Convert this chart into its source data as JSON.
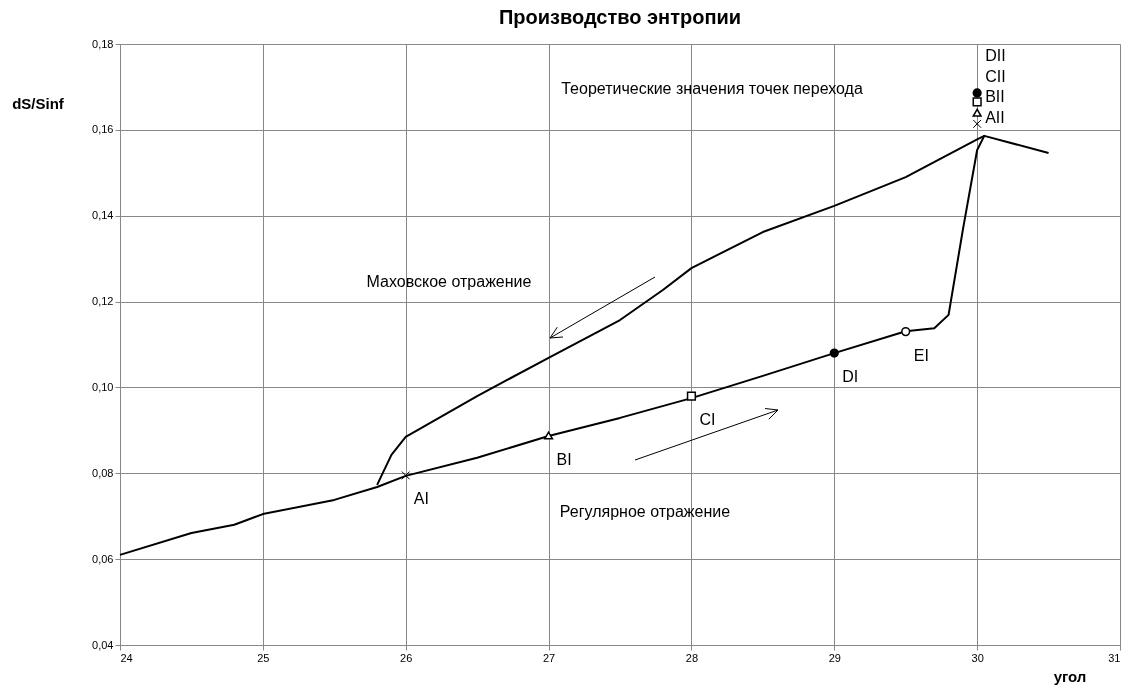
{
  "chart_data": {
    "type": "line",
    "title": "Производство энтропии",
    "xlabel": "угол",
    "ylabel": "dS/Sinf",
    "xlim": [
      24,
      31
    ],
    "xticks": [
      24,
      25,
      26,
      27,
      28,
      29,
      30,
      31
    ],
    "ylim": [
      0.04,
      0.18
    ],
    "yticks": [
      {
        "value": 0.04,
        "label": "0,04"
      },
      {
        "value": 0.06,
        "label": "0,06"
      },
      {
        "value": 0.08,
        "label": "0,08"
      },
      {
        "value": 0.1,
        "label": "0,10"
      },
      {
        "value": 0.12,
        "label": "0,12"
      },
      {
        "value": 0.14,
        "label": "0,14"
      },
      {
        "value": 0.16,
        "label": "0,16"
      },
      {
        "value": 0.18,
        "label": "0,18"
      }
    ],
    "grid": true,
    "series": [
      {
        "type": "line",
        "color": "#000000",
        "line_style": "solid",
        "marker": "none",
        "x": [
          24,
          24.5,
          24.8,
          25,
          25.5,
          25.8,
          26,
          26.5,
          27,
          27.5,
          28,
          28.5,
          29,
          29.5,
          29.7,
          29.8,
          29.9,
          30,
          30.05,
          30.5
        ],
        "values": [
          0.061,
          0.0661,
          0.068,
          0.0705,
          0.0738,
          0.0768,
          0.0794,
          0.0836,
          0.0887,
          0.0929,
          0.0975,
          0.1027,
          0.108,
          0.1131,
          0.1138,
          0.1169,
          0.1367,
          0.1553,
          0.1586,
          0.1546
        ]
      },
      {
        "type": "line",
        "color": "#000000",
        "line_style": "solid",
        "marker": "none",
        "x": [
          30.05,
          30,
          29.5,
          29,
          28.5,
          28,
          27.8,
          27.5,
          27,
          26.5,
          26,
          25.9,
          25.8
        ],
        "values": [
          0.1586,
          0.1578,
          0.149,
          0.1423,
          0.1362,
          0.1278,
          0.1227,
          0.1157,
          0.1069,
          0.098,
          0.0885,
          0.0843,
          0.0773
        ]
      },
      {
        "type": "scatter",
        "marker": "cross",
        "color": "#000000",
        "x": [
          26,
          30
        ],
        "values": [
          0.0795,
          0.1614
        ]
      },
      {
        "type": "scatter",
        "marker": "triangle",
        "color": "#ffffff",
        "x": [
          27,
          30
        ],
        "values": [
          0.0888,
          0.164
        ]
      },
      {
        "type": "scatter",
        "marker": "square",
        "color": "#ffffff",
        "x": [
          28,
          30
        ],
        "values": [
          0.098,
          0.1665
        ]
      },
      {
        "type": "scatter",
        "marker": "circle",
        "color": "#000000",
        "x": [
          29,
          30
        ],
        "values": [
          0.108,
          0.1686
        ]
      },
      {
        "type": "scatter",
        "marker": "circle",
        "color": "#ffffff",
        "x": [
          29.5
        ],
        "values": [
          0.113
        ]
      }
    ],
    "annotations": [
      "Теоретические значения точек перехода",
      "Маховское отражение",
      "Регулярное отражение",
      {
        "text": "AI",
        "x": 26,
        "y": 0.0795
      },
      {
        "text": "BI",
        "x": 27,
        "y": 0.0888
      },
      {
        "text": "CI",
        "x": 28,
        "y": 0.098
      },
      {
        "text": "DI",
        "x": 29,
        "y": 0.108
      },
      {
        "text": "EI",
        "x": 29.5,
        "y": 0.113
      },
      {
        "text": "DII",
        "x": 30,
        "y": 0.1686
      },
      {
        "text": "CII",
        "x": 30,
        "y": 0.1665
      },
      {
        "text": "BII",
        "x": 30,
        "y": 0.164
      },
      {
        "text": "AII",
        "x": 30,
        "y": 0.1614
      }
    ]
  }
}
